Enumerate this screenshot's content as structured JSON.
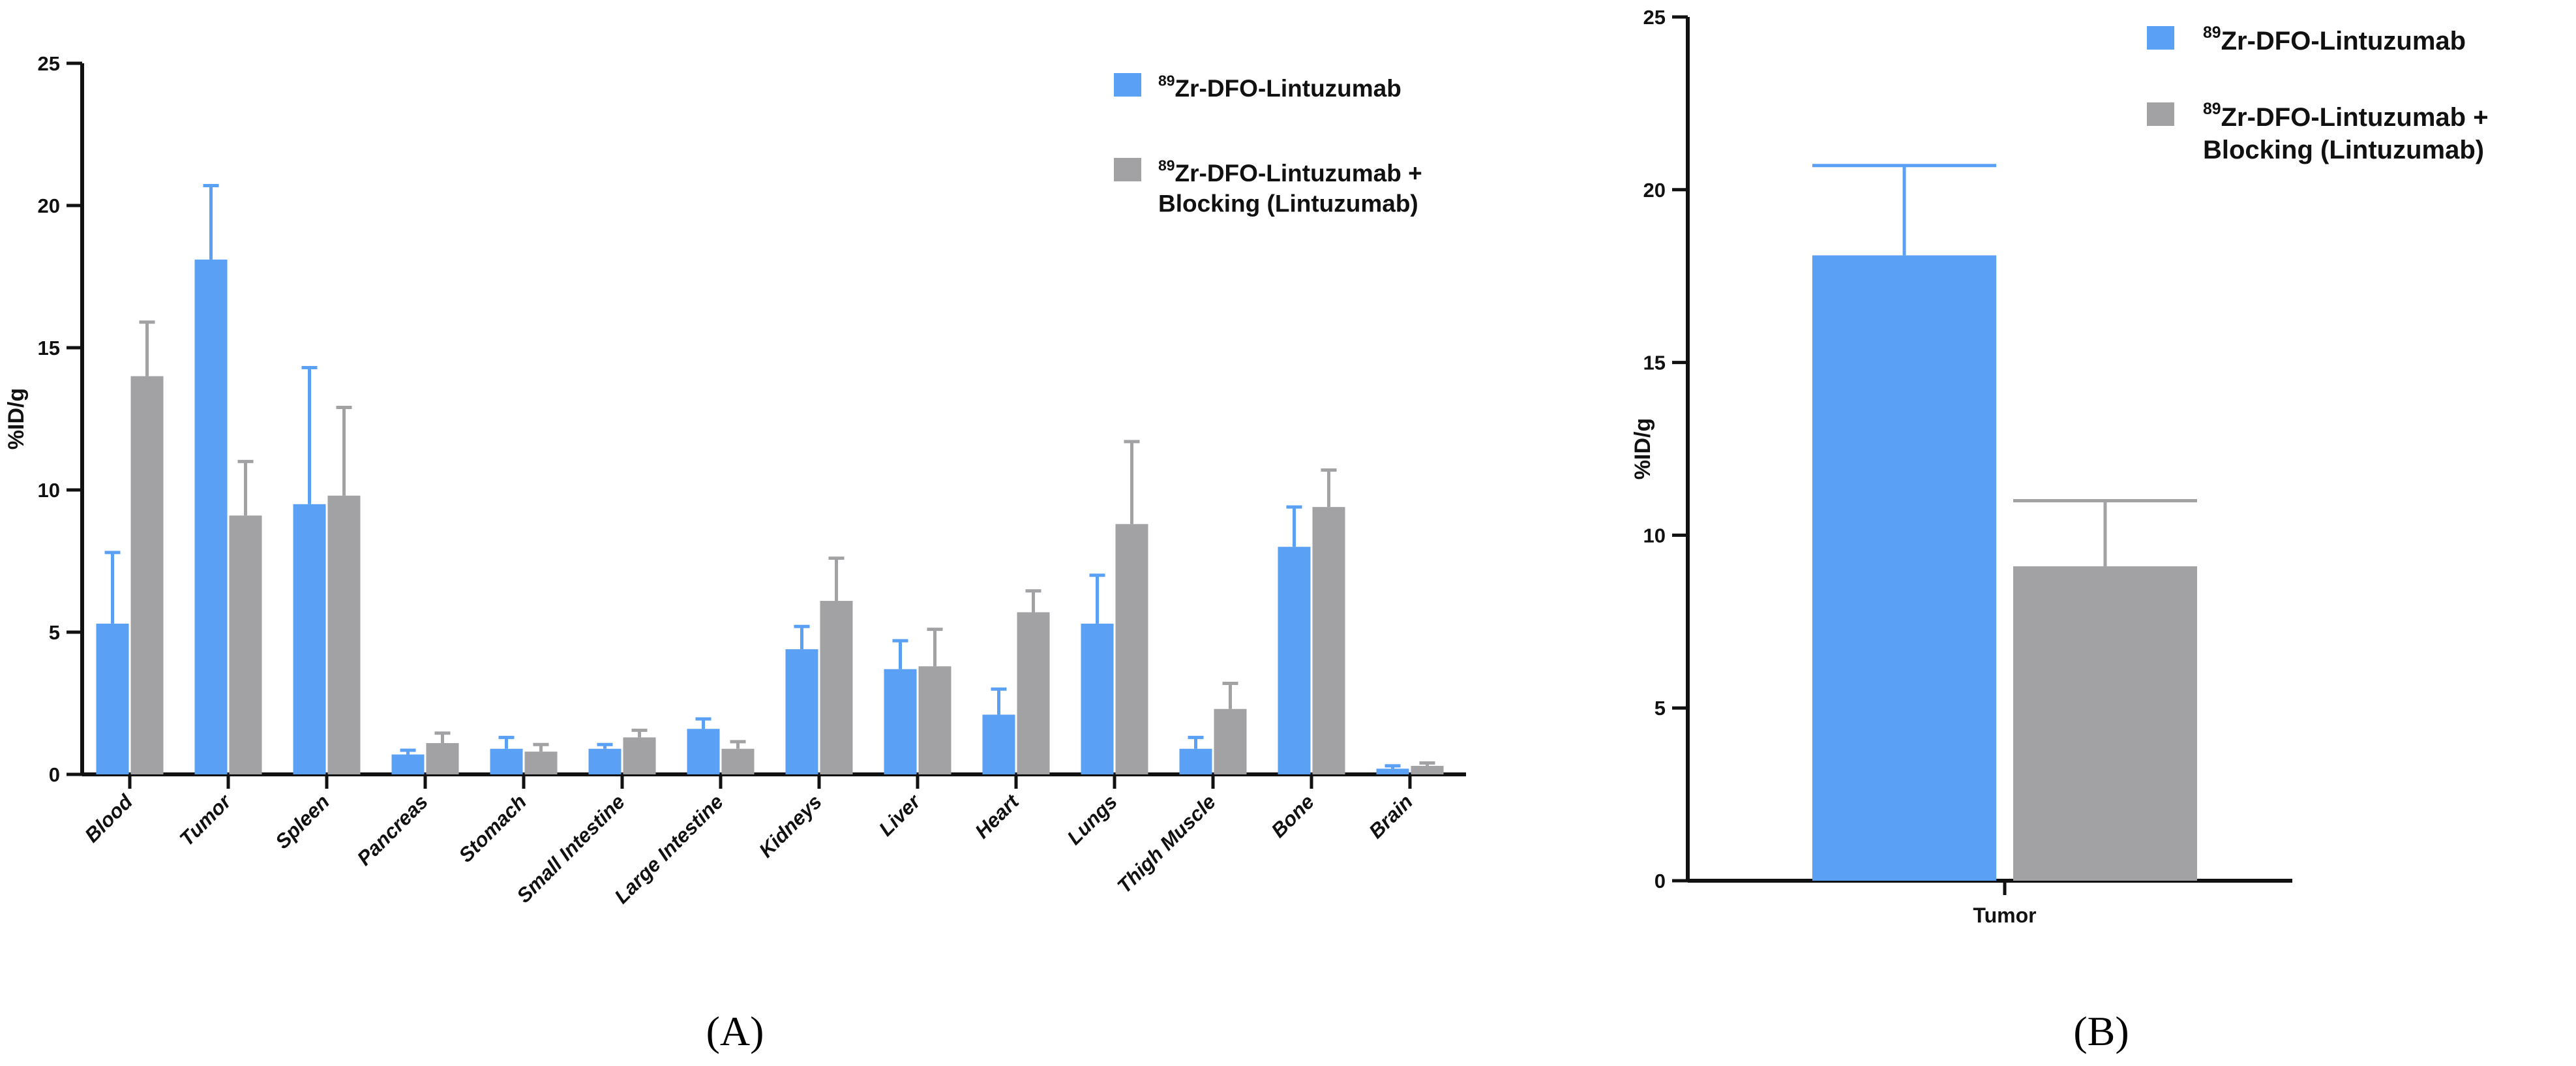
{
  "chart_data": [
    {
      "panel": "A",
      "type": "bar",
      "ylabel": "%ID/g",
      "ylim": [
        0,
        25
      ],
      "yticks": [
        0,
        5,
        10,
        15,
        20,
        25
      ],
      "categories": [
        "Blood",
        "Tumor",
        "Spleen",
        "Pancreas",
        "Stomach",
        "Small Intestine",
        "Large Intestine",
        "Kidneys",
        "Liver",
        "Heart",
        "Lungs",
        "Thigh Muscle",
        "Bone",
        "Brain"
      ],
      "series": [
        {
          "name_sup": "89",
          "name": "Zr-DFO-Lintuzumab",
          "color": "#5aa0f5",
          "values": [
            5.3,
            18.1,
            9.5,
            0.7,
            0.9,
            0.9,
            1.6,
            4.4,
            3.7,
            2.1,
            5.3,
            0.9,
            8.0,
            0.2
          ],
          "errors": [
            2.5,
            2.6,
            4.8,
            0.15,
            0.4,
            0.15,
            0.35,
            0.8,
            1.0,
            0.9,
            1.7,
            0.4,
            1.4,
            0.1
          ]
        },
        {
          "name_sup": "89",
          "name": "Zr-DFO-Lintuzumab + Blocking (Lintuzumab)",
          "name_line1": "Zr-DFO-Lintuzumab +",
          "name_line2": "Blocking (Lintuzumab)",
          "color": "#a2a2a5",
          "values": [
            14.0,
            9.1,
            9.8,
            1.1,
            0.8,
            1.3,
            0.9,
            6.1,
            3.8,
            5.7,
            8.8,
            2.3,
            9.4,
            0.3
          ],
          "errors": [
            1.9,
            1.9,
            3.1,
            0.35,
            0.25,
            0.25,
            0.25,
            1.5,
            1.3,
            0.75,
            2.9,
            0.9,
            1.3,
            0.1
          ]
        }
      ],
      "legend": "top-right",
      "grid": false,
      "caption": "(A)"
    },
    {
      "panel": "B",
      "type": "bar",
      "ylabel": "%ID/g",
      "ylim": [
        0,
        25
      ],
      "yticks": [
        0,
        5,
        10,
        15,
        20,
        25
      ],
      "categories": [
        "Tumor"
      ],
      "series": [
        {
          "name_sup": "89",
          "name": "Zr-DFO-Lintuzumab",
          "color": "#5aa0f5",
          "values": [
            18.1
          ],
          "errors": [
            2.6
          ]
        },
        {
          "name_sup": "89",
          "name": "Zr-DFO-Lintuzumab + Blocking (Lintuzumab)",
          "name_line1": "Zr-DFO-Lintuzumab +",
          "name_line2": "Blocking (Lintuzumab)",
          "color": "#a2a2a5",
          "values": [
            9.1
          ],
          "errors": [
            1.9
          ]
        }
      ],
      "legend": "top-right",
      "grid": false,
      "caption": "(B)"
    }
  ]
}
